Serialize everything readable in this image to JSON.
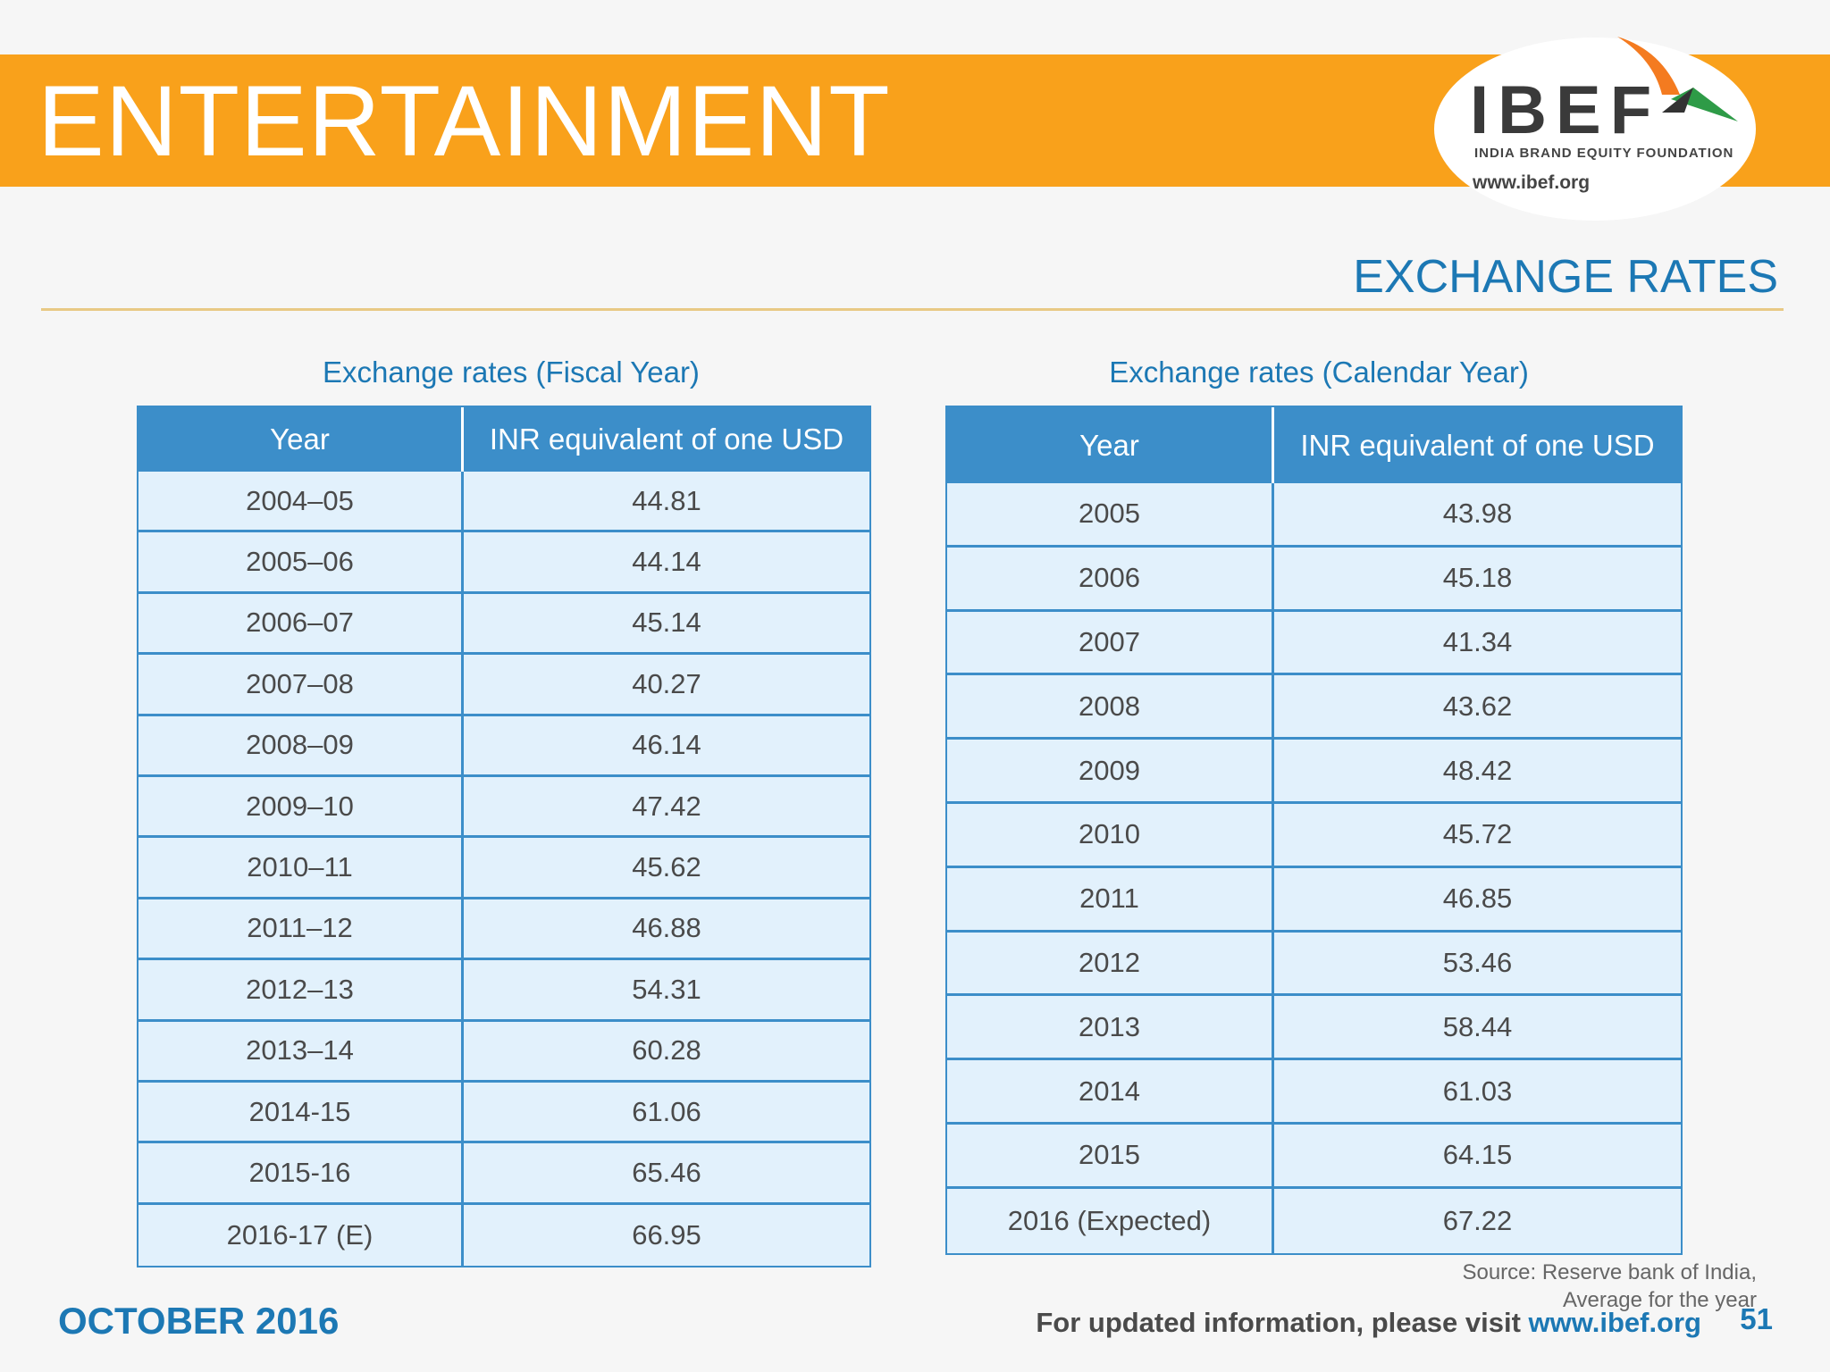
{
  "header": {
    "title": "ENTERTAINMENT",
    "logo": {
      "name": "IBEF",
      "tagline": "INDIA BRAND EQUITY FOUNDATION",
      "url": "www.ibef.org"
    }
  },
  "section_title": "EXCHANGE RATES",
  "tables": [
    {
      "caption": "Exchange rates (Fiscal Year)",
      "columns": [
        "Year",
        "INR equivalent of one USD"
      ],
      "rows": [
        [
          "2004–05",
          "44.81"
        ],
        [
          "2005–06",
          "44.14"
        ],
        [
          "2006–07",
          "45.14"
        ],
        [
          "2007–08",
          "40.27"
        ],
        [
          "2008–09",
          "46.14"
        ],
        [
          "2009–10",
          "47.42"
        ],
        [
          "2010–11",
          "45.62"
        ],
        [
          "2011–12",
          "46.88"
        ],
        [
          "2012–13",
          "54.31"
        ],
        [
          "2013–14",
          "60.28"
        ],
        [
          "2014-15",
          "61.06"
        ],
        [
          "2015-16",
          "65.46"
        ],
        [
          "2016-17 (E)",
          "66.95"
        ]
      ]
    },
    {
      "caption": "Exchange rates (Calendar Year)",
      "columns": [
        "Year",
        "INR equivalent of one USD"
      ],
      "rows": [
        [
          "2005",
          "43.98"
        ],
        [
          "2006",
          "45.18"
        ],
        [
          "2007",
          "41.34"
        ],
        [
          "2008",
          "43.62"
        ],
        [
          "2009",
          "48.42"
        ],
        [
          "2010",
          "45.72"
        ],
        [
          "2011",
          "46.85"
        ],
        [
          "2012",
          "53.46"
        ],
        [
          "2013",
          "58.44"
        ],
        [
          "2014",
          "61.03"
        ],
        [
          "2015",
          "64.15"
        ],
        [
          "2016 (Expected)",
          "67.22"
        ]
      ]
    }
  ],
  "source": [
    "Source: Reserve bank of India,",
    "Average for the year"
  ],
  "footer": {
    "date": "OCTOBER 2016",
    "note": "For updated information, please visit",
    "url": "www.ibef.org",
    "page": "51"
  }
}
